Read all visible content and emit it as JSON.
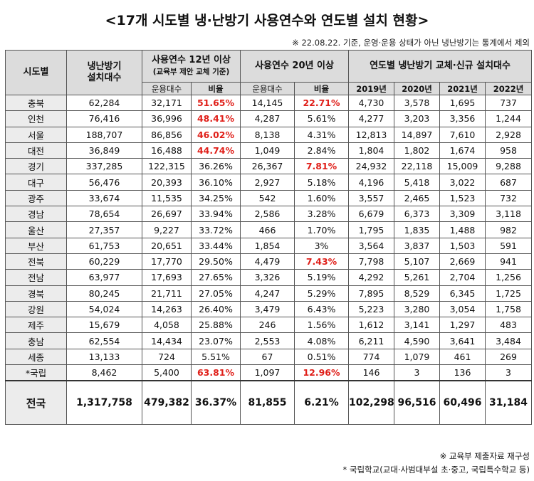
{
  "title": "<17개 시도별 냉·난방기 사용연수와 연도별 설치 현황>",
  "note_top": "※ 22.08.22. 기준, 운영·운용 상태가 아닌 냉난방기는 통계에서 제외",
  "headers": {
    "region": "시도별",
    "installed_line1": "냉난방기",
    "installed_line2": "설치대수",
    "use12_line1": "사용연수 12년 이상",
    "use12_line2": "(교육부 제안 교체 기준)",
    "use20": "사용연수 20년 이상",
    "yearly": "연도별 냉난방기 교체·신규 설치대수",
    "count": "운용대수",
    "ratio": "비율",
    "ratio2": "비율",
    "count2": "운용대수",
    "y2019": "2019년",
    "y2020": "2020년",
    "y2021": "2021년",
    "y2022": "2022년"
  },
  "rows": [
    {
      "region": "충북",
      "installed": "62,284",
      "c12": "32,171",
      "r12": "51.65%",
      "r12_red": true,
      "c20": "14,145",
      "r20": "22.71%",
      "r20_red": true,
      "y2019": "4,730",
      "y2020": "3,578",
      "y2021": "1,695",
      "y2022": "737"
    },
    {
      "region": "인천",
      "installed": "76,416",
      "c12": "36,996",
      "r12": "48.41%",
      "r12_red": true,
      "c20": "4,287",
      "r20": "5.61%",
      "r20_red": false,
      "y2019": "4,277",
      "y2020": "3,203",
      "y2021": "3,356",
      "y2022": "1,244"
    },
    {
      "region": "서울",
      "installed": "188,707",
      "c12": "86,856",
      "r12": "46.02%",
      "r12_red": true,
      "c20": "8,138",
      "r20": "4.31%",
      "r20_red": false,
      "y2019": "12,813",
      "y2020": "14,897",
      "y2021": "7,610",
      "y2022": "2,928"
    },
    {
      "region": "대전",
      "installed": "36,849",
      "c12": "16,488",
      "r12": "44.74%",
      "r12_red": true,
      "c20": "1,049",
      "r20": "2.84%",
      "r20_red": false,
      "y2019": "1,804",
      "y2020": "1,802",
      "y2021": "1,674",
      "y2022": "958"
    },
    {
      "region": "경기",
      "installed": "337,285",
      "c12": "122,315",
      "r12": "36.26%",
      "r12_red": false,
      "c20": "26,367",
      "r20": "7.81%",
      "r20_red": true,
      "y2019": "24,932",
      "y2020": "22,118",
      "y2021": "15,009",
      "y2022": "9,288"
    },
    {
      "region": "대구",
      "installed": "56,476",
      "c12": "20,393",
      "r12": "36.10%",
      "r12_red": false,
      "c20": "2,927",
      "r20": "5.18%",
      "r20_red": false,
      "y2019": "4,196",
      "y2020": "5,418",
      "y2021": "3,022",
      "y2022": "687"
    },
    {
      "region": "광주",
      "installed": "33,674",
      "c12": "11,535",
      "r12": "34.25%",
      "r12_red": false,
      "c20": "542",
      "r20": "1.60%",
      "r20_red": false,
      "y2019": "3,557",
      "y2020": "2,465",
      "y2021": "1,523",
      "y2022": "732"
    },
    {
      "region": "경남",
      "installed": "78,654",
      "c12": "26,697",
      "r12": "33.94%",
      "r12_red": false,
      "c20": "2,586",
      "r20": "3.28%",
      "r20_red": false,
      "y2019": "6,679",
      "y2020": "6,373",
      "y2021": "3,309",
      "y2022": "3,118"
    },
    {
      "region": "울산",
      "installed": "27,357",
      "c12": "9,227",
      "r12": "33.72%",
      "r12_red": false,
      "c20": "466",
      "r20": "1.70%",
      "r20_red": false,
      "y2019": "1,795",
      "y2020": "1,835",
      "y2021": "1,488",
      "y2022": "982"
    },
    {
      "region": "부산",
      "installed": "61,753",
      "c12": "20,651",
      "r12": "33.44%",
      "r12_red": false,
      "c20": "1,854",
      "r20": "3%",
      "r20_red": false,
      "y2019": "3,564",
      "y2020": "3,837",
      "y2021": "1,503",
      "y2022": "591"
    },
    {
      "region": "전북",
      "installed": "60,229",
      "c12": "17,770",
      "r12": "29.50%",
      "r12_red": false,
      "c20": "4,479",
      "r20": "7.43%",
      "r20_red": true,
      "y2019": "7,798",
      "y2020": "5,107",
      "y2021": "2,669",
      "y2022": "941"
    },
    {
      "region": "전남",
      "installed": "63,977",
      "c12": "17,693",
      "r12": "27.65%",
      "r12_red": false,
      "c20": "3,326",
      "r20": "5.19%",
      "r20_red": false,
      "y2019": "4,292",
      "y2020": "5,261",
      "y2021": "2,704",
      "y2022": "1,256"
    },
    {
      "region": "경북",
      "installed": "80,245",
      "c12": "21,711",
      "r12": "27.05%",
      "r12_red": false,
      "c20": "4,247",
      "r20": "5.29%",
      "r20_red": false,
      "y2019": "7,895",
      "y2020": "8,529",
      "y2021": "6,345",
      "y2022": "1,725"
    },
    {
      "region": "강원",
      "installed": "54,024",
      "c12": "14,263",
      "r12": "26.40%",
      "r12_red": false,
      "c20": "3,479",
      "r20": "6.43%",
      "r20_red": false,
      "y2019": "5,223",
      "y2020": "3,280",
      "y2021": "3,054",
      "y2022": "1,758"
    },
    {
      "region": "제주",
      "installed": "15,679",
      "c12": "4,058",
      "r12": "25.88%",
      "r12_red": false,
      "c20": "246",
      "r20": "1.56%",
      "r20_red": false,
      "y2019": "1,612",
      "y2020": "3,141",
      "y2021": "1,297",
      "y2022": "483"
    },
    {
      "region": "충남",
      "installed": "62,554",
      "c12": "14,434",
      "r12": "23.07%",
      "r12_red": false,
      "c20": "2,553",
      "r20": "4.08%",
      "r20_red": false,
      "y2019": "6,211",
      "y2020": "4,590",
      "y2021": "3,641",
      "y2022": "3,484"
    },
    {
      "region": "세종",
      "installed": "13,133",
      "c12": "724",
      "r12": "5.51%",
      "r12_red": false,
      "c20": "67",
      "r20": "0.51%",
      "r20_red": false,
      "y2019": "774",
      "y2020": "1,079",
      "y2021": "461",
      "y2022": "269"
    },
    {
      "region": "*국립",
      "installed": "8,462",
      "c12": "5,400",
      "r12": "63.81%",
      "r12_red": true,
      "c20": "1,097",
      "r20": "12.96%",
      "r20_red": true,
      "y2019": "146",
      "y2020": "3",
      "y2021": "136",
      "y2022": "3"
    }
  ],
  "total": {
    "region": "전국",
    "installed": "1,317,758",
    "c12": "479,382",
    "r12": "36.37%",
    "c20": "81,855",
    "r20": "6.21%",
    "y2019": "102,298",
    "y2020": "96,516",
    "y2021": "60,496",
    "y2022": "31,184"
  },
  "footnote1": "※ 교육부 제출자료 재구성",
  "footnote2": "* 국립학교(교대·사범대부설 초·중고, 국립특수학교 등)",
  "colors": {
    "highlight": "#e0201a",
    "header_bg": "#dcdcdc"
  }
}
